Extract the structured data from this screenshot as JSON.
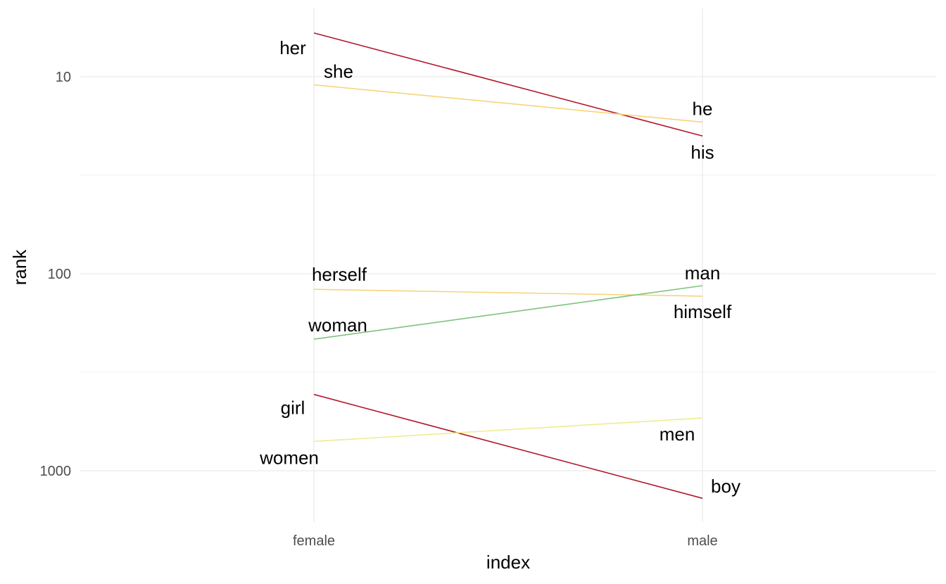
{
  "chart_data": {
    "type": "line",
    "title": "",
    "xlabel": "index",
    "ylabel": "rank",
    "categories": [
      "female",
      "male"
    ],
    "y_scale": "log10",
    "y_reversed": true,
    "ylim": [
      6,
      1200
    ],
    "y_ticks": [
      10,
      100,
      1000
    ],
    "y_tick_labels": [
      "10",
      "100",
      "1000"
    ],
    "grid": true,
    "legend": "none",
    "pairs": [
      {
        "female_word": "her",
        "male_word": "his",
        "female_rank": 6,
        "male_rank": 20,
        "color": "#b2182b"
      },
      {
        "female_word": "she",
        "male_word": "he",
        "female_rank": 11,
        "male_rank": 17,
        "color": "#f6d47a"
      },
      {
        "female_word": "herself",
        "male_word": "himself",
        "female_rank": 120,
        "male_rank": 130,
        "color": "#f6d47a"
      },
      {
        "female_word": "woman",
        "male_word": "man",
        "female_rank": 215,
        "male_rank": 115,
        "color": "#7fc27f"
      },
      {
        "female_word": "girl",
        "male_word": "boy",
        "female_rank": 410,
        "male_rank": 1380,
        "color": "#b2182b"
      },
      {
        "female_word": "women",
        "male_word": "men",
        "female_rank": 710,
        "male_rank": 540,
        "color": "#eded90"
      }
    ]
  }
}
